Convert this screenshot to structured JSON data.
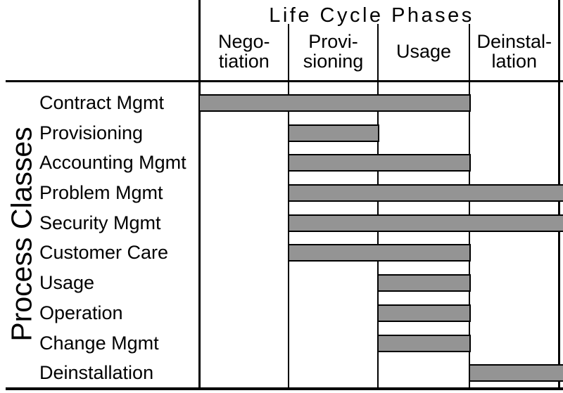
{
  "diagram": {
    "title": "Life Cycle Phases",
    "y_axis_label": "Process Classes",
    "phases": [
      {
        "name": "Negotiation",
        "label_lines": [
          "Nego-",
          "tiation"
        ]
      },
      {
        "name": "Provisioning",
        "label_lines": [
          "Provi-",
          "sioning"
        ]
      },
      {
        "name": "Usage",
        "label_lines": [
          "Usage"
        ]
      },
      {
        "name": "Deinstallation",
        "label_lines": [
          "Deinstal-",
          "lation"
        ]
      }
    ],
    "process_classes": [
      {
        "label": "Contract Mgmt",
        "span": [
          0,
          2
        ],
        "to_edge": false
      },
      {
        "label": "Provisioning",
        "span": [
          1,
          1
        ],
        "to_edge": false
      },
      {
        "label": "Accounting Mgmt",
        "span": [
          1,
          2
        ],
        "to_edge": false
      },
      {
        "label": "Problem Mgmt",
        "span": [
          1,
          3
        ],
        "to_edge": true
      },
      {
        "label": "Security Mgmt",
        "span": [
          1,
          3
        ],
        "to_edge": true
      },
      {
        "label": "Customer Care",
        "span": [
          1,
          2
        ],
        "to_edge": false
      },
      {
        "label": "Usage",
        "span": [
          2,
          2
        ],
        "to_edge": false
      },
      {
        "label": "Operation",
        "span": [
          2,
          2
        ],
        "to_edge": false
      },
      {
        "label": "Change Mgmt",
        "span": [
          2,
          2
        ],
        "to_edge": false
      },
      {
        "label": "Deinstallation",
        "span": [
          3,
          3
        ],
        "to_edge": true
      }
    ],
    "colors": {
      "bar_fill": "#949494",
      "bar_border": "#000000",
      "grid_line": "#000000",
      "background": "#ffffff",
      "text": "#000000"
    }
  }
}
